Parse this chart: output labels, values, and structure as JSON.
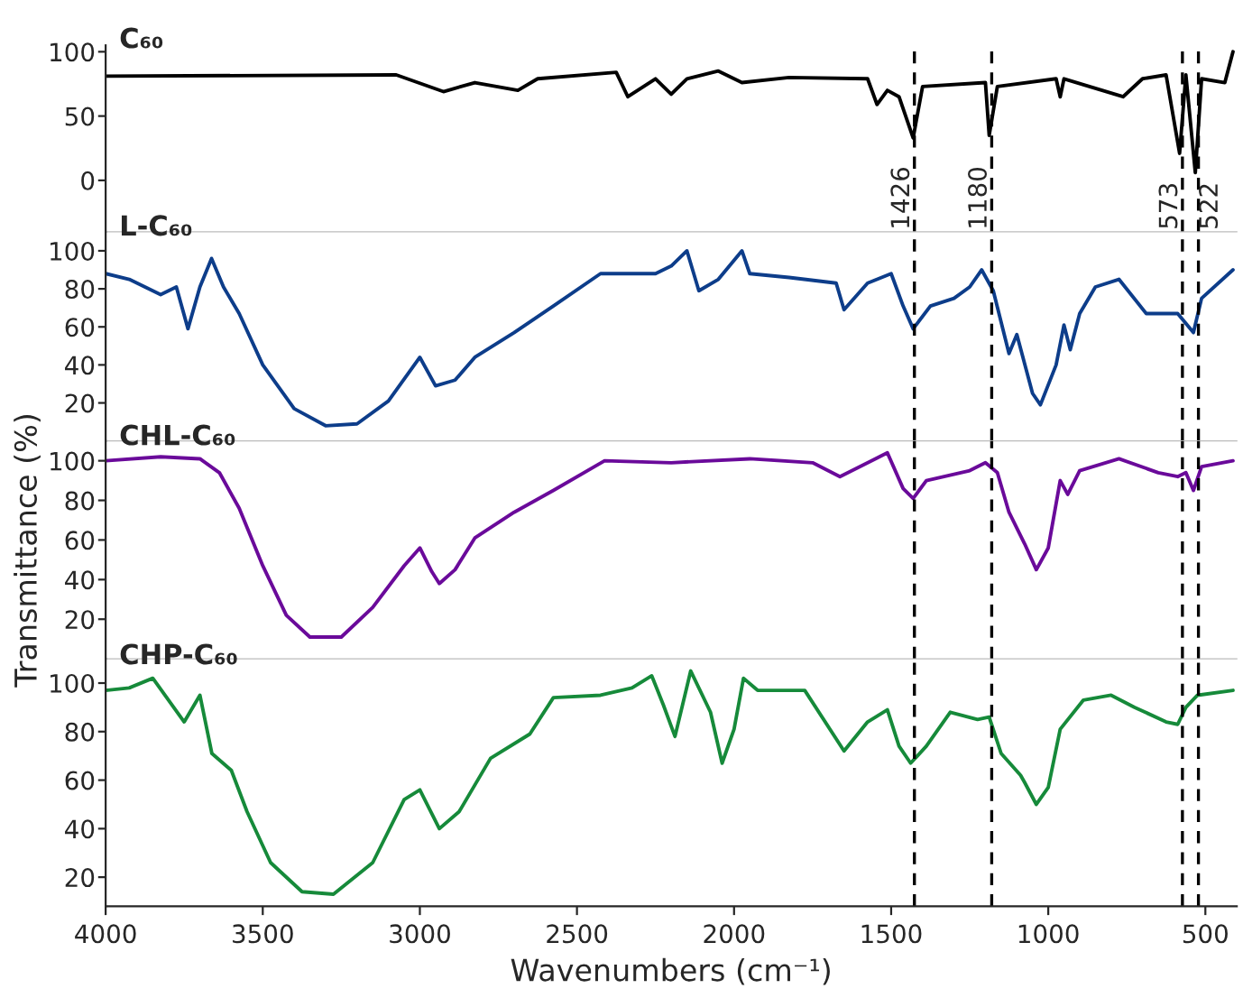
{
  "chart_data": [
    {
      "type": "line",
      "title": "C₆₀",
      "tick_labels": "y",
      "xlim": [
        4000,
        400
      ],
      "xticks": [
        4000,
        3500,
        3000,
        2500,
        2000,
        1500,
        1000,
        500
      ],
      "ylim": [
        -40,
        105
      ],
      "yticks": [
        0,
        50,
        100
      ],
      "grid": false,
      "legend": false,
      "x": [
        4000,
        3075,
        2925,
        2825,
        2688,
        2625,
        2375,
        2338,
        2250,
        2200,
        2150,
        2050,
        1975,
        1825,
        1575,
        1545,
        1512,
        1475,
        1430,
        1400,
        1200,
        1188,
        1162,
        975,
        962,
        950,
        762,
        700,
        625,
        582,
        562,
        532,
        512,
        438,
        412
      ],
      "series": [
        {
          "color": "#000000",
          "values": [
            81,
            82,
            69,
            76,
            70,
            79,
            84,
            65,
            79,
            67,
            79,
            85,
            76,
            80,
            79,
            59,
            70,
            65,
            33,
            73,
            76,
            35,
            73,
            79,
            65,
            79,
            65,
            79,
            82,
            21,
            82,
            6,
            79,
            76,
            100
          ]
        }
      ],
      "ref_lines": [
        {
          "axis": "x",
          "value": 1426,
          "label": "1426",
          "line_style": "dashed",
          "color": "#000000"
        },
        {
          "axis": "x",
          "value": 1180,
          "label": "1180",
          "line_style": "dashed",
          "color": "#000000"
        },
        {
          "axis": "x",
          "value": 573,
          "label": "573",
          "line_style": "dashed",
          "color": "#000000"
        },
        {
          "axis": "x",
          "value": 522,
          "label": "522",
          "line_style": "dashed",
          "color": "#000000"
        }
      ]
    },
    {
      "type": "line",
      "title": "L-C₆₀",
      "tick_labels": "y",
      "xlim": [
        4000,
        400
      ],
      "xticks": [
        4000,
        3500,
        3000,
        2500,
        2000,
        1500,
        1000,
        500
      ],
      "ylim": [
        0,
        110
      ],
      "yticks": [
        20,
        40,
        60,
        80,
        100
      ],
      "grid": false,
      "legend": false,
      "x": [
        4000,
        3925,
        3825,
        3775,
        3738,
        3700,
        3663,
        3625,
        3575,
        3500,
        3400,
        3300,
        3200,
        3100,
        3000,
        2950,
        2888,
        2825,
        2700,
        2575,
        2425,
        2250,
        2200,
        2150,
        2112,
        2050,
        1975,
        1950,
        1825,
        1675,
        1650,
        1575,
        1500,
        1462,
        1430,
        1375,
        1300,
        1250,
        1212,
        1175,
        1125,
        1100,
        1050,
        1025,
        975,
        950,
        930,
        900,
        850,
        775,
        688,
        588,
        538,
        512,
        412
      ],
      "series": [
        {
          "color": "#0d3d8a",
          "values": [
            88,
            85,
            77,
            81,
            59,
            81,
            96,
            81,
            67,
            40,
            17,
            8,
            9,
            21,
            44,
            29,
            32,
            44,
            57,
            71,
            88,
            88,
            92,
            100,
            79,
            85,
            100,
            88,
            86,
            83,
            69,
            83,
            88,
            71,
            59,
            71,
            75,
            81,
            90,
            79,
            46,
            56,
            25,
            19,
            40,
            61,
            48,
            67,
            81,
            85,
            67,
            67,
            57,
            75,
            90
          ]
        }
      ],
      "ref_lines": [
        {
          "axis": "x",
          "value": 1426,
          "line_style": "dashed",
          "color": "#000000"
        },
        {
          "axis": "x",
          "value": 1180,
          "line_style": "dashed",
          "color": "#000000"
        },
        {
          "axis": "x",
          "value": 573,
          "line_style": "dashed",
          "color": "#000000"
        },
        {
          "axis": "x",
          "value": 522,
          "line_style": "dashed",
          "color": "#000000"
        }
      ]
    },
    {
      "type": "line",
      "title": "CHL-C₆₀",
      "ylabel": "Transmittance (%)",
      "tick_labels": "y",
      "xlim": [
        4000,
        400
      ],
      "xticks": [
        4000,
        3500,
        3000,
        2500,
        2000,
        1500,
        1000,
        500
      ],
      "ylim": [
        0,
        110
      ],
      "yticks": [
        20,
        40,
        60,
        80,
        100
      ],
      "grid": false,
      "legend": false,
      "x": [
        4000,
        3825,
        3700,
        3638,
        3575,
        3500,
        3425,
        3350,
        3250,
        3150,
        3050,
        3000,
        2962,
        2938,
        2888,
        2825,
        2700,
        2575,
        2412,
        2200,
        1950,
        1750,
        1663,
        1512,
        1462,
        1430,
        1388,
        1250,
        1200,
        1162,
        1125,
        1075,
        1038,
        1000,
        962,
        938,
        900,
        775,
        650,
        588,
        562,
        538,
        512,
        412
      ],
      "series": [
        {
          "color": "#6a0a9a",
          "values": [
            100,
            102,
            101,
            94,
            76,
            47,
            22,
            11,
            11,
            26,
            47,
            56,
            44,
            38,
            45,
            61,
            74,
            85,
            100,
            99,
            101,
            99,
            92,
            104,
            86,
            81,
            90,
            95,
            99,
            94,
            74,
            58,
            45,
            56,
            90,
            83,
            95,
            101,
            94,
            92,
            94,
            85,
            97,
            100
          ]
        }
      ],
      "ref_lines": [
        {
          "axis": "x",
          "value": 1426,
          "line_style": "dashed",
          "color": "#000000"
        },
        {
          "axis": "x",
          "value": 1180,
          "line_style": "dashed",
          "color": "#000000"
        },
        {
          "axis": "x",
          "value": 573,
          "line_style": "dashed",
          "color": "#000000"
        },
        {
          "axis": "x",
          "value": 522,
          "line_style": "dashed",
          "color": "#000000"
        }
      ]
    },
    {
      "type": "line",
      "title": "CHP-C₆₀",
      "xlabel": "Wavenumbers (cm⁻¹)",
      "xlim": [
        4000,
        400
      ],
      "xticks": [
        4000,
        3500,
        3000,
        2500,
        2000,
        1500,
        1000,
        500
      ],
      "ylim": [
        8,
        110
      ],
      "yticks": [
        20,
        40,
        60,
        80,
        100
      ],
      "grid": false,
      "legend": false,
      "x": [
        4000,
        3925,
        3850,
        3750,
        3700,
        3662,
        3600,
        3550,
        3475,
        3375,
        3275,
        3150,
        3050,
        3000,
        2938,
        2875,
        2775,
        2650,
        2575,
        2425,
        2325,
        2262,
        2225,
        2188,
        2138,
        2075,
        2038,
        2000,
        1970,
        1925,
        1775,
        1650,
        1575,
        1512,
        1475,
        1438,
        1388,
        1312,
        1225,
        1188,
        1150,
        1088,
        1075,
        1038,
        1000,
        962,
        888,
        800,
        725,
        625,
        588,
        562,
        525,
        412
      ],
      "series": [
        {
          "color": "#168a3a",
          "values": [
            97,
            98,
            102,
            84,
            95,
            71,
            64,
            47,
            26,
            14,
            13,
            26,
            52,
            56,
            40,
            47,
            69,
            79,
            94,
            95,
            98,
            103,
            91,
            78,
            105,
            88,
            67,
            81,
            102,
            97,
            97,
            72,
            84,
            89,
            74,
            67,
            74,
            88,
            85,
            86,
            71,
            62,
            59,
            50,
            57,
            81,
            93,
            95,
            90,
            84,
            83,
            90,
            95,
            97
          ]
        }
      ],
      "ref_lines": [
        {
          "axis": "x",
          "value": 1426,
          "line_style": "dashed",
          "color": "#000000"
        },
        {
          "axis": "x",
          "value": 1180,
          "line_style": "dashed",
          "color": "#000000"
        },
        {
          "axis": "x",
          "value": 573,
          "line_style": "dashed",
          "color": "#000000"
        },
        {
          "axis": "x",
          "value": 522,
          "line_style": "dashed",
          "color": "#000000"
        }
      ]
    }
  ]
}
